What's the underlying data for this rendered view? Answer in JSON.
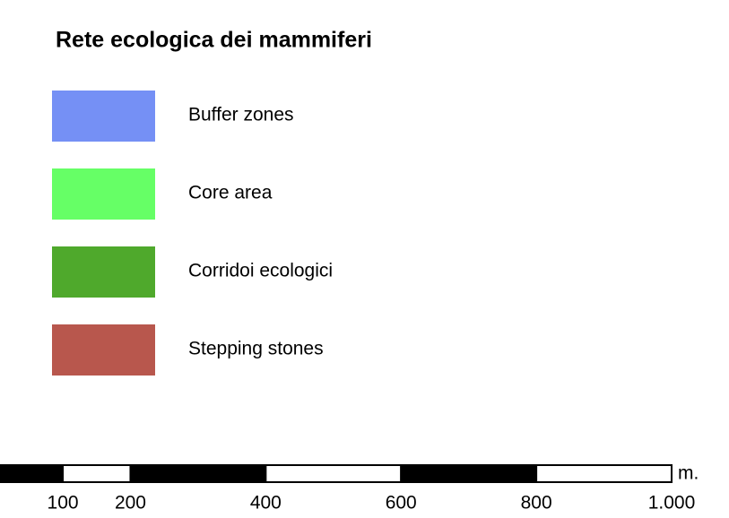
{
  "title": "Rete ecologica dei mammiferi",
  "legend": [
    {
      "label": "Buffer zones",
      "color": "#7590f5"
    },
    {
      "label": "Core area",
      "color": "#66ff66"
    },
    {
      "label": "Corridoi ecologici",
      "color": "#4fa92c"
    },
    {
      "label": "Stepping stones",
      "color": "#b8574d"
    }
  ],
  "scale_bar": {
    "range": [
      0,
      1000
    ],
    "ticks": [
      100,
      200,
      400,
      600,
      800,
      {
        "value": 1000,
        "label": "1.000"
      }
    ],
    "unit": "m."
  }
}
